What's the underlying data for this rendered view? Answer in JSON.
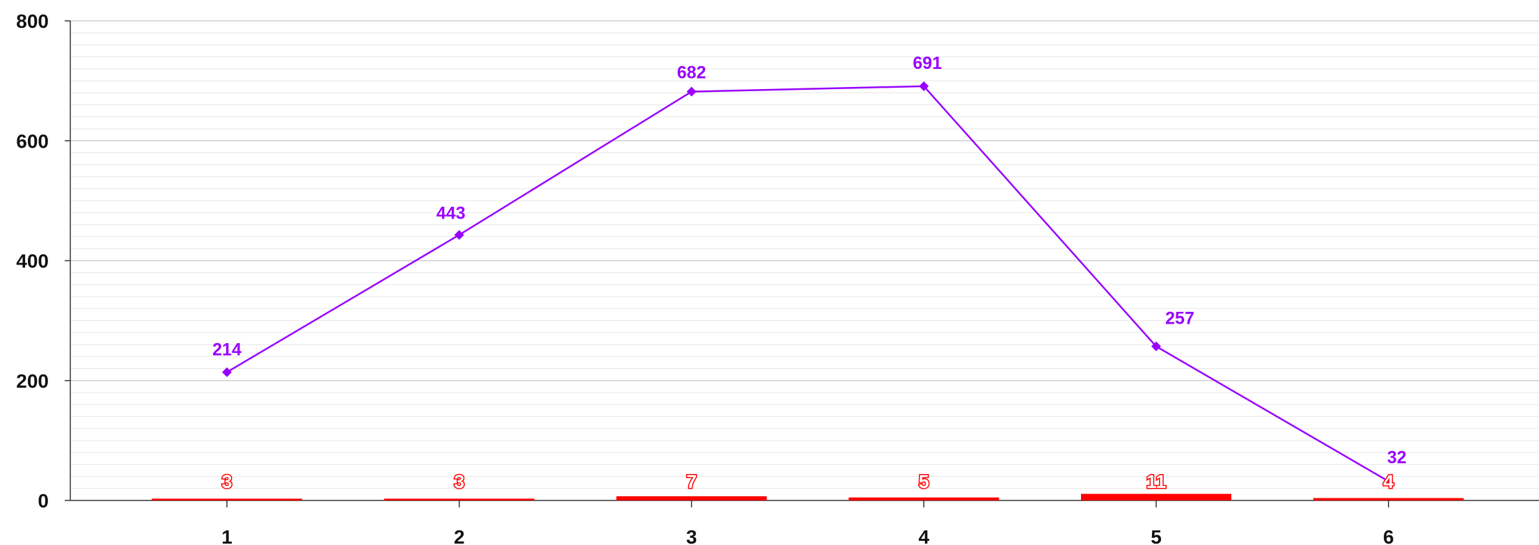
{
  "chart_data": {
    "type": "bar+line",
    "categories": [
      "1",
      "2",
      "3",
      "4",
      "5",
      "6"
    ],
    "x": [
      1,
      2,
      3,
      4,
      5,
      6
    ],
    "series": [
      {
        "type": "line",
        "values": [
          214,
          443,
          682,
          691,
          257,
          32
        ],
        "color": "#9900ff",
        "marker": "diamond",
        "data_labels": [
          "214",
          "443",
          "682",
          "691",
          "257",
          "32"
        ]
      },
      {
        "type": "bar",
        "values": [
          3,
          3,
          7,
          5,
          11,
          4
        ],
        "color": "#ff0000",
        "data_labels": [
          "3",
          "3",
          "7",
          "5",
          "11",
          "4"
        ]
      }
    ],
    "y_ticks": [
      "0",
      "200",
      "400",
      "600",
      "800"
    ],
    "ylim": [
      0,
      800
    ],
    "grid": true,
    "title": "",
    "xlabel": "",
    "ylabel": "",
    "legend": "none"
  }
}
